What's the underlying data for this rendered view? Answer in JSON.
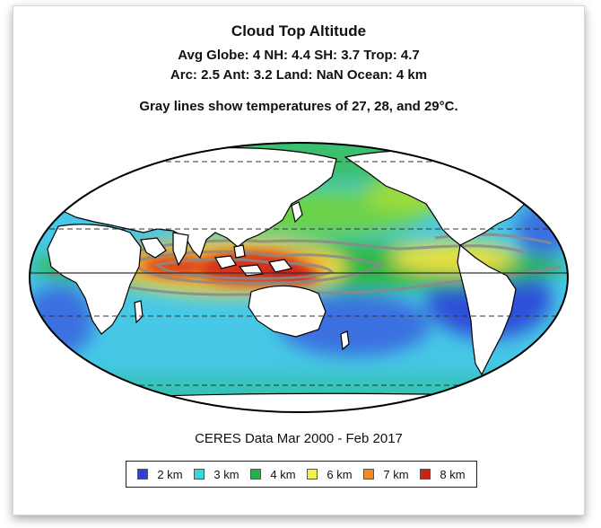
{
  "title": "Cloud Top Altitude",
  "stats_line1": "Avg Globe: 4  NH: 4.4  SH: 3.7  Trop: 4.7",
  "stats_line2": "Arc: 2.5  Ant: 3.2  Land: NaN Ocean: 4 km",
  "note": "Gray lines show temperatures of 27, 28, and 29°C.",
  "caption": "CERES Data Mar 2000 - Feb 2017",
  "legend": [
    {
      "label": "2 km",
      "color": "#2f3fd8"
    },
    {
      "label": "3 km",
      "color": "#36d7d7"
    },
    {
      "label": "4 km",
      "color": "#22b24a"
    },
    {
      "label": "6 km",
      "color": "#f3ee4a"
    },
    {
      "label": "7 km",
      "color": "#f08c22"
    },
    {
      "label": "8 km",
      "color": "#cc2116"
    }
  ]
}
